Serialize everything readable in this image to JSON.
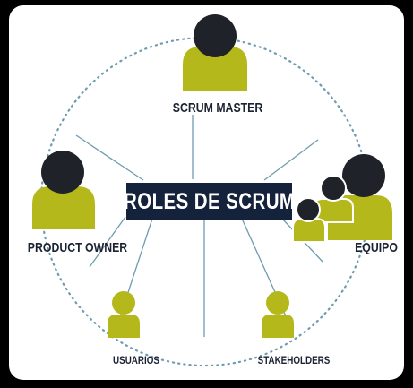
{
  "diagram": {
    "title": "ROLES DE SCRUM",
    "roles": [
      {
        "id": "scrum-master",
        "label": "SCRUM MASTER"
      },
      {
        "id": "product-owner",
        "label": "PRODUCT OWNER"
      },
      {
        "id": "equipo",
        "label": "EQUIPO"
      },
      {
        "id": "usuarios",
        "label": "USUARIOS"
      },
      {
        "id": "stakeholders",
        "label": "STAKEHOLDERS"
      }
    ]
  },
  "colors": {
    "background": "#000000",
    "panel": "#ffffff",
    "title_box": "#15223c",
    "title_text": "#ffffff",
    "figure_body": "#b5b81a",
    "figure_head": "#1f2329",
    "dotted_line": "#6f9bb0",
    "label_text": "#1b2231"
  },
  "icons": [
    "person-icon"
  ]
}
